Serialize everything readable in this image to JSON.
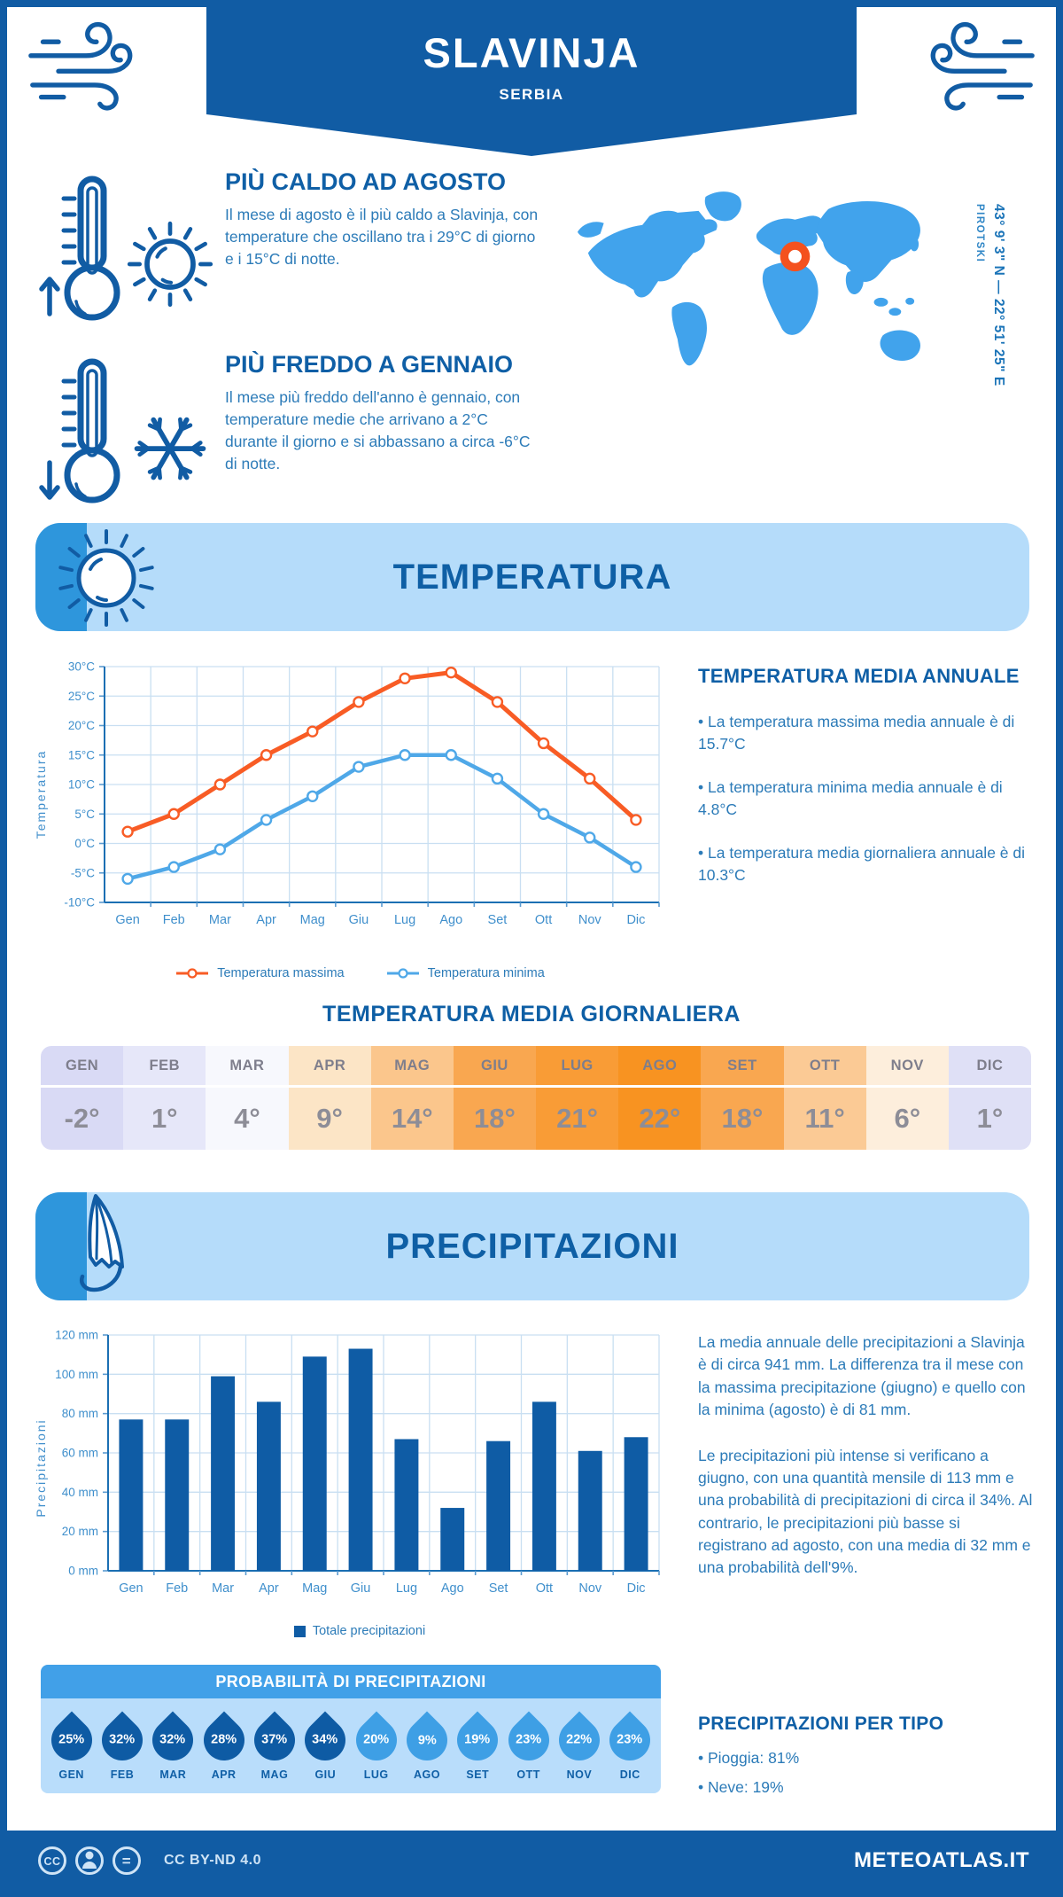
{
  "header": {
    "title": "SLAVINJA",
    "subtitle": "SERBIA"
  },
  "map": {
    "coordinates": "43° 9' 3\" N — 22° 51' 25\" E",
    "region": "PIROTSKI",
    "marker_color": "#F4511E",
    "land_color": "#41A3EC"
  },
  "highlights": [
    {
      "title": "PIÙ CALDO AD AGOSTO",
      "text": "Il mese di agosto è il più caldo a Slavinja, con temperature che oscillano tra i 29°C di giorno e i 15°C di notte."
    },
    {
      "title": "PIÙ FREDDO A GENNAIO",
      "text": "Il mese più freddo dell'anno è gennaio, con temperature medie che arrivano a 2°C durante il giorno e si abbassano a circa -6°C di notte."
    }
  ],
  "sections": {
    "temperature": "TEMPERATURA",
    "precipitation": "PRECIPITAZIONI"
  },
  "chart_data": [
    {
      "type": "line",
      "title": "Temperatura media mensile",
      "categories": [
        "Gen",
        "Feb",
        "Mar",
        "Apr",
        "Mag",
        "Giu",
        "Lug",
        "Ago",
        "Set",
        "Ott",
        "Nov",
        "Dic"
      ],
      "series": [
        {
          "name": "Temperatura massima",
          "color": "#F85C25",
          "values": [
            2,
            5,
            10,
            15,
            19,
            24,
            28,
            29,
            24,
            17,
            11,
            4
          ]
        },
        {
          "name": "Temperatura minima",
          "color": "#4FA8E8",
          "values": [
            -6,
            -4,
            -1,
            4,
            8,
            13,
            15,
            15,
            11,
            5,
            1,
            -4
          ]
        }
      ],
      "ylabel": "Temperatura",
      "ylim": [
        -10,
        30
      ],
      "ytick_step": 5,
      "ytick_suffix": "°C",
      "grid": true,
      "legend_position": "bottom"
    },
    {
      "type": "bar",
      "title": "Totale precipitazioni mensili",
      "categories": [
        "Gen",
        "Feb",
        "Mar",
        "Apr",
        "Mag",
        "Giu",
        "Lug",
        "Ago",
        "Set",
        "Ott",
        "Nov",
        "Dic"
      ],
      "series": [
        {
          "name": "Totale precipitazioni",
          "color": "#0F5CA5",
          "values": [
            77,
            77,
            99,
            86,
            109,
            113,
            67,
            32,
            66,
            86,
            61,
            68
          ]
        }
      ],
      "ylabel": "Precipitazioni",
      "ylim": [
        0,
        120
      ],
      "ytick_step": 20,
      "ytick_suffix": " mm",
      "grid": true,
      "legend_position": "bottom"
    }
  ],
  "annual_summary": {
    "heading": "TEMPERATURA MEDIA ANNUALE",
    "bullets": [
      "La temperatura massima media annuale è di 15.7°C",
      "La temperatura minima media annuale è di 4.8°C",
      "La temperatura media giornaliera annuale è di 10.3°C"
    ]
  },
  "daily_temp": {
    "title": "TEMPERATURA MEDIA GIORNALIERA",
    "months": [
      {
        "label": "GEN",
        "value": "-2°",
        "bg": "#D9DAF5"
      },
      {
        "label": "FEB",
        "value": "1°",
        "bg": "#E6E7F9"
      },
      {
        "label": "MAR",
        "value": "4°",
        "bg": "#F7F8FD"
      },
      {
        "label": "APR",
        "value": "9°",
        "bg": "#FCE5C6"
      },
      {
        "label": "MAG",
        "value": "14°",
        "bg": "#FBC68C"
      },
      {
        "label": "GIU",
        "value": "18°",
        "bg": "#F9A750"
      },
      {
        "label": "LUG",
        "value": "21°",
        "bg": "#F99C36"
      },
      {
        "label": "AGO",
        "value": "22°",
        "bg": "#F89321"
      },
      {
        "label": "SET",
        "value": "18°",
        "bg": "#F9A750"
      },
      {
        "label": "OTT",
        "value": "11°",
        "bg": "#FBCA95"
      },
      {
        "label": "NOV",
        "value": "6°",
        "bg": "#FDEEDC"
      },
      {
        "label": "DIC",
        "value": "1°",
        "bg": "#DFE0F6"
      }
    ]
  },
  "precip_summary": {
    "paragraphs": [
      "La media annuale delle precipitazioni a Slavinja è di circa 941 mm. La differenza tra il mese con la massima precipitazione (giugno) e quello con la minima (agosto) è di 81 mm.",
      "Le precipitazioni più intense si verificano a giugno, con una quantità mensile di 113 mm e una probabilità di precipitazioni di circa il 34%. Al contrario, le precipitazioni più basse si registrano ad agosto, con una media di 32 mm e una probabilità dell'9%."
    ]
  },
  "probability": {
    "title": "PROBABILITÀ DI PRECIPITAZIONI",
    "colors": {
      "dark": "#0E5BA4",
      "light": "#3E9FE5"
    },
    "months": [
      {
        "label": "GEN",
        "value": "25%",
        "tone": "dark"
      },
      {
        "label": "FEB",
        "value": "32%",
        "tone": "dark"
      },
      {
        "label": "MAR",
        "value": "32%",
        "tone": "dark"
      },
      {
        "label": "APR",
        "value": "28%",
        "tone": "dark"
      },
      {
        "label": "MAG",
        "value": "37%",
        "tone": "dark"
      },
      {
        "label": "GIU",
        "value": "34%",
        "tone": "dark"
      },
      {
        "label": "LUG",
        "value": "20%",
        "tone": "light"
      },
      {
        "label": "AGO",
        "value": "9%",
        "tone": "light"
      },
      {
        "label": "SET",
        "value": "19%",
        "tone": "light"
      },
      {
        "label": "OTT",
        "value": "23%",
        "tone": "light"
      },
      {
        "label": "NOV",
        "value": "22%",
        "tone": "light"
      },
      {
        "label": "DIC",
        "value": "23%",
        "tone": "light"
      }
    ]
  },
  "precip_type": {
    "heading": "PRECIPITAZIONI PER TIPO",
    "items": [
      "Pioggia: 81%",
      "Neve: 19%"
    ]
  },
  "footer": {
    "license": "CC BY-ND 4.0",
    "site": "METEOATLAS.IT"
  }
}
